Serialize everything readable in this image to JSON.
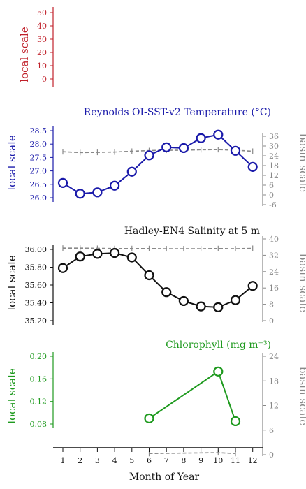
{
  "x_axis": {
    "label": "Month of Year",
    "ticks": [
      1,
      2,
      3,
      4,
      5,
      6,
      7,
      8,
      9,
      10,
      11,
      12
    ]
  },
  "panels": [
    {
      "id": "empty",
      "title": "",
      "ylabel": "local scale",
      "color": "#c0202a",
      "yticks": [
        0,
        10,
        20,
        30,
        40,
        50
      ],
      "ylim": [
        0,
        50
      ]
    },
    {
      "id": "temperature",
      "title": "Reynolds OI-SST-v2 Temperature (°C)",
      "ylabel": "local scale",
      "y2label": "basin scale",
      "color": "#1a1aaa",
      "basin_color": "#888888",
      "yticks": [
        "28.5",
        "28.0",
        "27.5",
        "27.0",
        "26.5",
        "26.0"
      ],
      "ylim": [
        26.0,
        28.5
      ],
      "y2ticks": [
        36,
        30,
        24,
        18,
        12,
        6,
        0,
        -6
      ],
      "y2lim": [
        -6,
        36
      ]
    },
    {
      "id": "salinity",
      "title": "Hadley-EN4 Salinity at 5 m",
      "ylabel": "local scale",
      "y2label": "basin scale",
      "color": "#111111",
      "basin_color": "#888888",
      "yticks": [
        "36.00",
        "35.80",
        "35.60",
        "35.40",
        "35.20"
      ],
      "ylim": [
        35.2,
        36.0
      ],
      "y2ticks": [
        40,
        32,
        24,
        16,
        8,
        0
      ],
      "y2lim": [
        0,
        40
      ]
    },
    {
      "id": "chlorophyll",
      "title": "Chlorophyll (mg m⁻³)",
      "ylabel": "local scale",
      "y2label": "basin scale",
      "color": "#1f9a1f",
      "basin_color": "#888888",
      "yticks": [
        "0.20",
        "0.16",
        "0.12",
        "0.08"
      ],
      "ylim": [
        0.05,
        0.2
      ],
      "y2ticks": [
        24,
        18,
        12,
        6,
        0
      ],
      "y2lim": [
        0,
        24
      ]
    }
  ],
  "chart_data": [
    {
      "type": "line",
      "title": "",
      "ylabel": "local scale",
      "ylim": [
        0,
        50
      ],
      "series": []
    },
    {
      "type": "line",
      "title": "Reynolds OI-SST-v2 Temperature (°C)",
      "ylabel": "local scale",
      "y2label": "basin scale",
      "ylim": [
        26.0,
        28.5
      ],
      "y2lim": [
        -6,
        36
      ],
      "series": [
        {
          "axis": "local",
          "style": "line+open-circles",
          "x": [
            1,
            2,
            3,
            4,
            5,
            6,
            7,
            8,
            9,
            10,
            11,
            12
          ],
          "values": [
            26.55,
            26.15,
            26.2,
            26.45,
            26.97,
            27.58,
            27.88,
            27.85,
            28.22,
            28.35,
            27.75,
            27.15
          ]
        },
        {
          "axis": "basin",
          "style": "dashed",
          "x": [
            1,
            2,
            3,
            4,
            5,
            6,
            7,
            8,
            9,
            10,
            11,
            12
          ],
          "values": [
            26.5,
            26.0,
            26.1,
            26.3,
            26.8,
            27.2,
            27.4,
            27.4,
            27.7,
            27.8,
            27.4,
            26.8
          ]
        }
      ]
    },
    {
      "type": "line",
      "title": "Hadley-EN4 Salinity at 5 m",
      "ylabel": "local scale",
      "y2label": "basin scale",
      "ylim": [
        35.2,
        36.0
      ],
      "y2lim": [
        0,
        40
      ],
      "series": [
        {
          "axis": "local",
          "style": "line+open-circles",
          "x": [
            1,
            2,
            3,
            4,
            5,
            6,
            7,
            8,
            9,
            10,
            11,
            12
          ],
          "values": [
            35.79,
            35.92,
            35.95,
            35.96,
            35.91,
            35.71,
            35.52,
            35.42,
            35.36,
            35.35,
            35.43,
            35.59
          ]
        },
        {
          "axis": "basin",
          "style": "dashed",
          "x": [
            1,
            2,
            3,
            4,
            5,
            6,
            7,
            8,
            9,
            10,
            11,
            12
          ],
          "values": [
            35.5,
            35.5,
            35.4,
            35.3,
            35.3,
            35.3,
            35.2,
            35.2,
            35.2,
            35.3,
            35.2,
            35.4
          ]
        }
      ]
    },
    {
      "type": "line",
      "title": "Chlorophyll (mg m⁻³)",
      "ylabel": "local scale",
      "y2label": "basin scale",
      "ylim": [
        0.05,
        0.2
      ],
      "y2lim": [
        0,
        24
      ],
      "series": [
        {
          "axis": "local",
          "style": "line+open-circles",
          "x": [
            6,
            10,
            11
          ],
          "values": [
            0.09,
            0.173,
            0.085
          ]
        },
        {
          "axis": "basin",
          "style": "dashed",
          "x": [
            6,
            10,
            11
          ],
          "values": [
            0.3,
            0.5,
            0.3
          ]
        }
      ]
    }
  ]
}
